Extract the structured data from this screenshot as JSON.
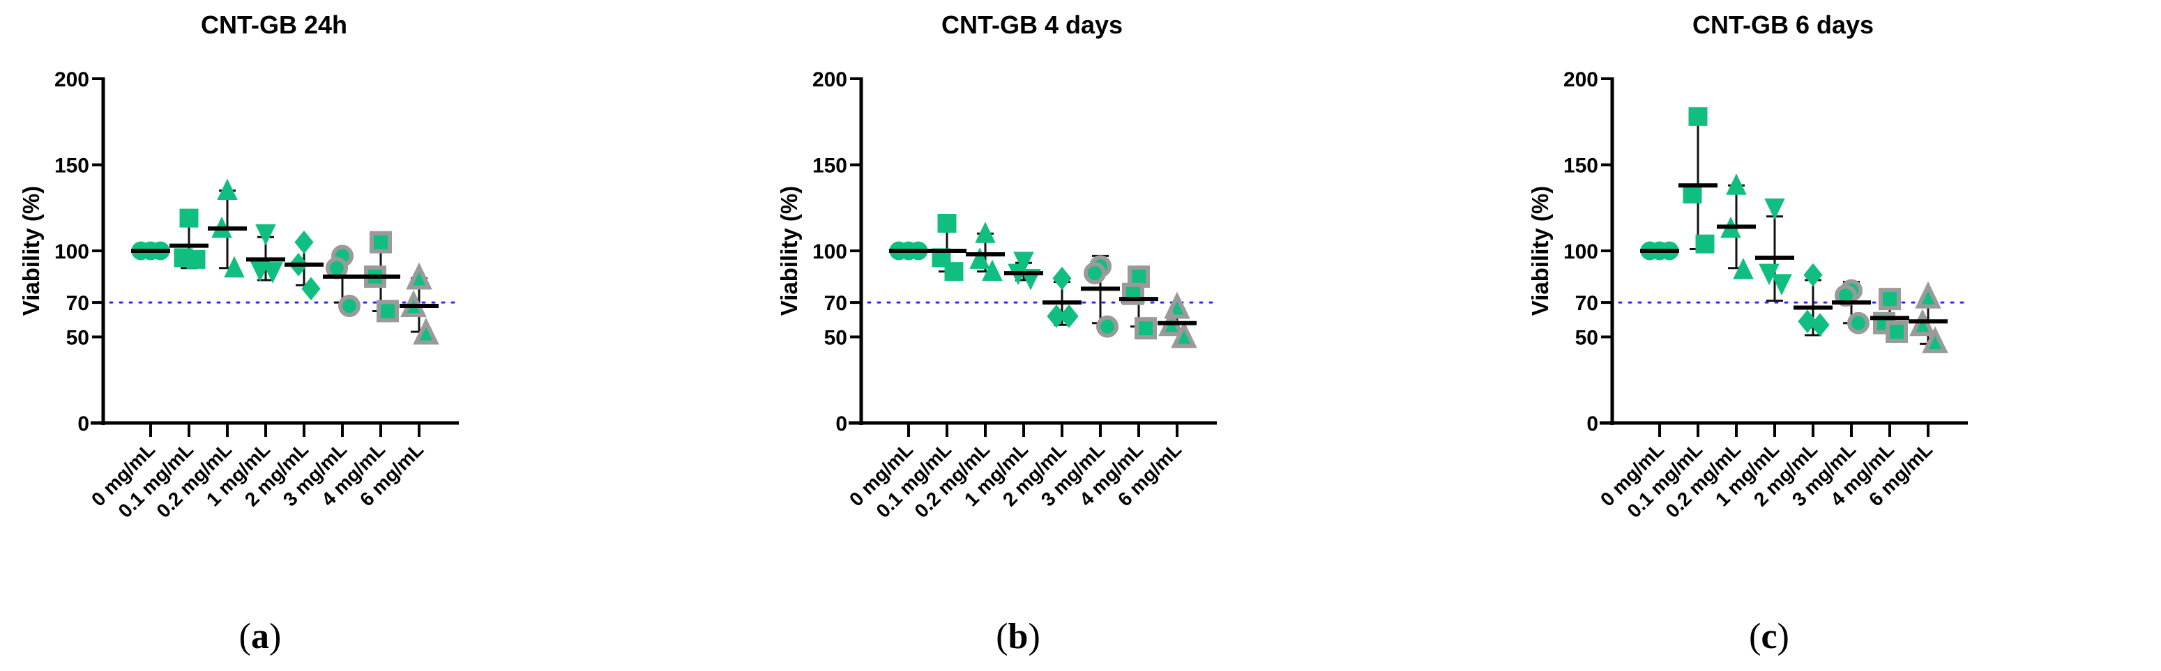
{
  "colors": {
    "marker": "#10bf7f",
    "marker_edge": "#9a9a9a",
    "threshold": "#2a2aff",
    "axis": "#000000"
  },
  "chart_data": [
    {
      "type": "scatter",
      "title": "CNT-GB 24h",
      "panel_label": "a",
      "ylabel": "Viability (%)",
      "xlabel": "",
      "ylim": [
        0,
        200
      ],
      "yticks": [
        0,
        50,
        70,
        100,
        150,
        200
      ],
      "threshold": 70,
      "categories": [
        "0 mg/mL",
        "0.1 mg/mL",
        "0.2 mg/mL",
        "1 mg/mL",
        "2 mg/mL",
        "3 mg/mL",
        "4 mg/mL",
        "6 mg/mL"
      ],
      "markers": [
        "circle",
        "square",
        "triangle",
        "triangle-down",
        "diamond",
        "circle-edged",
        "square-edged",
        "triangle-edged"
      ],
      "points": [
        [
          100,
          100,
          100
        ],
        [
          119,
          96,
          95
        ],
        [
          135,
          113,
          90
        ],
        [
          110,
          89,
          88
        ],
        [
          105,
          92,
          78
        ],
        [
          97,
          90,
          68
        ],
        [
          105,
          85,
          65
        ],
        [
          84,
          68,
          52
        ]
      ],
      "mean": [
        100,
        103,
        113,
        95,
        92,
        85,
        85,
        68
      ],
      "err_low": [
        100,
        90,
        90,
        83,
        80,
        70,
        65,
        53
      ],
      "err_high": [
        100,
        117,
        135,
        108,
        105,
        99,
        105,
        84
      ]
    },
    {
      "type": "scatter",
      "title": "CNT-GB 4 days",
      "panel_label": "b",
      "ylabel": "Viability (%)",
      "xlabel": "",
      "ylim": [
        0,
        200
      ],
      "yticks": [
        0,
        50,
        70,
        100,
        150,
        200
      ],
      "threshold": 70,
      "categories": [
        "0 mg/mL",
        "0.1 mg/mL",
        "0.2 mg/mL",
        "1 mg/mL",
        "2 mg/mL",
        "3 mg/mL",
        "4 mg/mL",
        "6 mg/mL"
      ],
      "markers": [
        "circle",
        "square",
        "triangle",
        "triangle-down",
        "diamond",
        "circle-edged",
        "square-edged",
        "triangle-edged"
      ],
      "points": [
        [
          100,
          100,
          100
        ],
        [
          116,
          96,
          88
        ],
        [
          110,
          95,
          88
        ],
        [
          94,
          87,
          84
        ],
        [
          84,
          62,
          62
        ],
        [
          91,
          87,
          56
        ],
        [
          85,
          75,
          55
        ],
        [
          67,
          57,
          50
        ]
      ],
      "mean": [
        100,
        100,
        98,
        87,
        70,
        78,
        72,
        58
      ],
      "err_low": [
        100,
        88,
        88,
        83,
        57,
        58,
        56,
        52
      ],
      "err_high": [
        100,
        113,
        110,
        93,
        82,
        97,
        86,
        66
      ]
    },
    {
      "type": "scatter",
      "title": "CNT-GB 6 days",
      "panel_label": "c",
      "ylabel": "Viability (%)",
      "xlabel": "",
      "ylim": [
        0,
        200
      ],
      "yticks": [
        0,
        50,
        70,
        100,
        150,
        200
      ],
      "threshold": 70,
      "categories": [
        "0 mg/mL",
        "0.1 mg/mL",
        "0.2 mg/mL",
        "1 mg/mL",
        "2 mg/mL",
        "3 mg/mL",
        "4 mg/mL",
        "6 mg/mL"
      ],
      "markers": [
        "circle",
        "square",
        "triangle",
        "triangle-down",
        "diamond",
        "circle-edged",
        "square-edged",
        "triangle-edged"
      ],
      "points": [
        [
          100,
          100,
          100
        ],
        [
          178,
          133,
          104
        ],
        [
          138,
          113,
          89
        ],
        [
          125,
          87,
          81
        ],
        [
          86,
          59,
          57
        ],
        [
          77,
          74,
          58
        ],
        [
          72,
          58,
          53
        ],
        [
          73,
          57,
          47
        ]
      ],
      "mean": [
        100,
        138,
        114,
        96,
        67,
        70,
        61,
        59
      ],
      "err_low": [
        100,
        101,
        90,
        71,
        51,
        58,
        53,
        46
      ],
      "err_high": [
        100,
        175,
        138,
        120,
        83,
        82,
        70,
        72
      ]
    }
  ]
}
